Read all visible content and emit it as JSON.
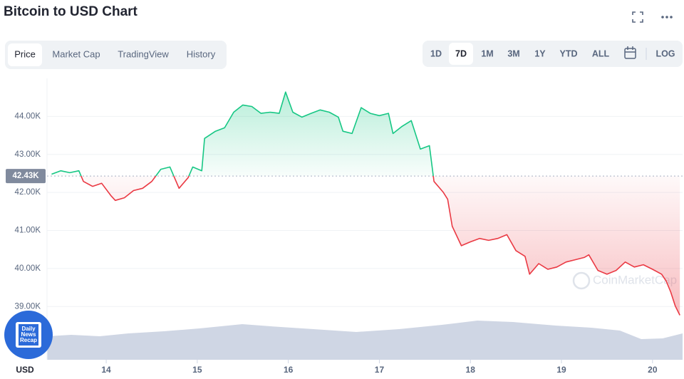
{
  "chart_data": {
    "type": "line",
    "title": "Bitcoin to USD Chart",
    "tabs": [
      "Price",
      "Market Cap",
      "TradingView",
      "History"
    ],
    "active_tab": 0,
    "ranges": [
      "1D",
      "7D",
      "1M",
      "3M",
      "1Y",
      "YTD",
      "ALL",
      "LOG"
    ],
    "active_range": 1,
    "y_axis_unit": "USD",
    "watermark": "CoinMarketCap",
    "badge": [
      "Daily",
      "News",
      "Recap"
    ],
    "up_color": "#16c784",
    "down_color": "#ea3943",
    "baseline": {
      "value": 42430,
      "label": "42.43K"
    },
    "x": [
      13.4,
      13.5,
      13.6,
      13.7,
      13.75,
      13.85,
      13.95,
      14.05,
      14.1,
      14.2,
      14.3,
      14.4,
      14.5,
      14.6,
      14.7,
      14.8,
      14.9,
      14.95,
      15.05,
      15.08,
      15.2,
      15.3,
      15.4,
      15.5,
      15.6,
      15.7,
      15.8,
      15.9,
      15.97,
      16.05,
      16.15,
      16.25,
      16.35,
      16.45,
      16.55,
      16.6,
      16.7,
      16.8,
      16.9,
      17.0,
      17.1,
      17.15,
      17.25,
      17.35,
      17.45,
      17.55,
      17.6,
      17.7,
      17.75,
      17.8,
      17.9,
      18.0,
      18.1,
      18.2,
      18.3,
      18.4,
      18.5,
      18.6,
      18.65,
      18.75,
      18.85,
      18.95,
      19.05,
      19.15,
      19.25,
      19.3,
      19.4,
      19.5,
      19.6,
      19.7,
      19.8,
      19.9,
      20.0,
      20.1,
      20.15,
      20.2,
      20.25,
      20.3
    ],
    "values": [
      42480,
      42570,
      42520,
      42570,
      42290,
      42160,
      42240,
      41920,
      41790,
      41860,
      42050,
      42110,
      42290,
      42610,
      42670,
      42110,
      42390,
      42670,
      42570,
      43420,
      43610,
      43700,
      44110,
      44300,
      44260,
      44080,
      44110,
      44080,
      44640,
      44110,
      43980,
      44080,
      44170,
      44110,
      43980,
      43610,
      43550,
      44230,
      44080,
      44020,
      44080,
      43550,
      43740,
      43890,
      43140,
      43230,
      42290,
      42010,
      41820,
      41110,
      40600,
      40700,
      40790,
      40740,
      40790,
      40890,
      40470,
      40320,
      39850,
      40130,
      39980,
      40040,
      40170,
      40230,
      40290,
      40360,
      39950,
      39850,
      39950,
      40170,
      40040,
      40100,
      39980,
      39850,
      39670,
      39380,
      39010,
      38770
    ],
    "xlim": [
      13.35,
      20.33
    ],
    "xticks": [
      14,
      15,
      16,
      17,
      18,
      19,
      20
    ],
    "ylim": [
      37600,
      45000
    ],
    "yticks": [
      {
        "value": 39000,
        "label": "39.00K"
      },
      {
        "value": 40000,
        "label": "40.00K"
      },
      {
        "value": 41000,
        "label": "41.00K"
      },
      {
        "value": 42000,
        "label": "42.00K"
      },
      {
        "value": 43000,
        "label": "43.00K"
      },
      {
        "value": 44000,
        "label": "44.00K"
      }
    ],
    "grid": true
  }
}
